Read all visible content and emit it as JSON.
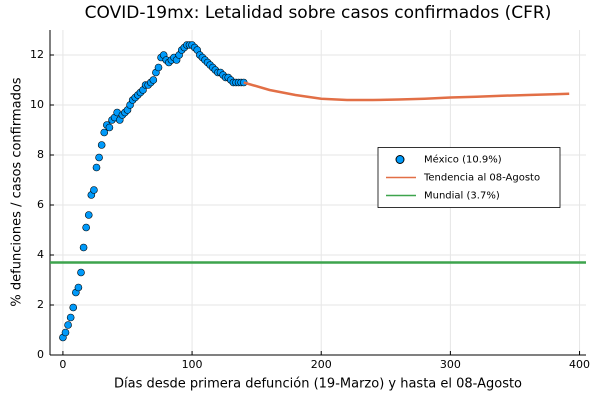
{
  "chart_data": {
    "type": "scatter-line",
    "title": "COVID-19mx: Letalidad sobre casos confirmados (CFR)",
    "xlabel": "Días desde primera defunción (19-Marzo) y hasta el 08-Agosto",
    "ylabel": "% defunciones / casos confirmados",
    "xlim": [
      -10,
      405
    ],
    "ylim": [
      0,
      13
    ],
    "xticks": [
      0,
      100,
      200,
      300,
      400
    ],
    "yticks": [
      0,
      2,
      4,
      6,
      8,
      10,
      12
    ],
    "grid": true,
    "legend": "center right",
    "series": [
      {
        "name": "México (10.9%)",
        "kind": "scatter",
        "color": "#009AFA",
        "x": [
          0,
          2,
          4,
          6,
          8,
          10,
          12,
          14,
          16,
          18,
          20,
          22,
          24,
          26,
          28,
          30,
          32,
          34,
          36,
          38,
          40,
          42,
          44,
          46,
          48,
          50,
          52,
          54,
          56,
          58,
          60,
          62,
          64,
          66,
          68,
          70,
          72,
          74,
          76,
          78,
          80,
          82,
          84,
          86,
          88,
          90,
          92,
          94,
          96,
          98,
          100,
          102,
          104,
          106,
          108,
          110,
          112,
          114,
          116,
          118,
          120,
          122,
          124,
          126,
          128,
          130,
          132,
          134,
          136,
          138,
          140
        ],
        "values": [
          0.7,
          0.9,
          1.2,
          1.5,
          1.9,
          2.5,
          2.7,
          3.3,
          4.3,
          5.1,
          5.6,
          6.4,
          6.6,
          7.5,
          7.9,
          8.4,
          8.9,
          9.2,
          9.1,
          9.4,
          9.5,
          9.7,
          9.4,
          9.6,
          9.7,
          9.8,
          10.0,
          10.2,
          10.3,
          10.4,
          10.5,
          10.6,
          10.8,
          10.8,
          10.9,
          11.0,
          11.3,
          11.5,
          11.9,
          12.0,
          11.8,
          11.7,
          11.8,
          11.9,
          11.8,
          12.0,
          12.2,
          12.3,
          12.4,
          12.4,
          12.4,
          12.3,
          12.2,
          12.0,
          11.9,
          11.8,
          11.7,
          11.6,
          11.5,
          11.4,
          11.3,
          11.3,
          11.2,
          11.1,
          11.1,
          11.0,
          10.9,
          10.9,
          10.9,
          10.9,
          10.9
        ]
      },
      {
        "name": "Tendencia al 08-Agosto",
        "kind": "line",
        "color": "#E26F46",
        "x": [
          140,
          160,
          180,
          200,
          220,
          240,
          260,
          280,
          300,
          320,
          340,
          360,
          380,
          392
        ],
        "values": [
          10.9,
          10.6,
          10.4,
          10.25,
          10.2,
          10.2,
          10.22,
          10.25,
          10.3,
          10.33,
          10.37,
          10.4,
          10.43,
          10.45
        ]
      },
      {
        "name": "Mundial (3.7%)",
        "kind": "line",
        "color": "#3DA44D",
        "x": [
          -10,
          405
        ],
        "values": [
          3.7,
          3.7
        ]
      }
    ]
  }
}
